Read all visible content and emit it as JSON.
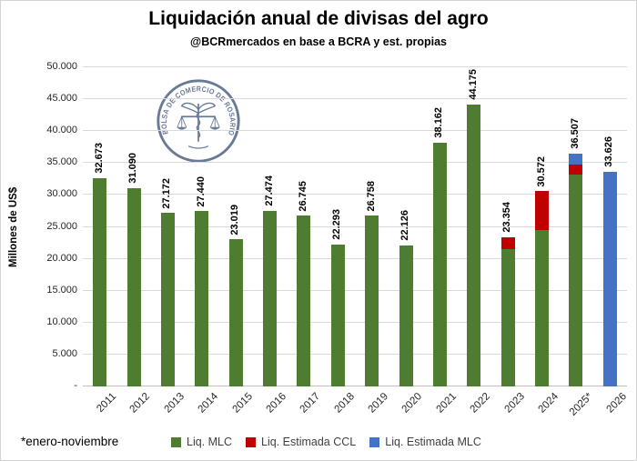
{
  "footnote": "*enero-noviembre",
  "watermark_text": "BOLSA DE COMERCIO DE ROSARIO",
  "colors": {
    "green": "#4e7d31",
    "red": "#c00000",
    "blue": "#4472c4",
    "gridline": "#d9d9d9",
    "axis": "#bfbfbf",
    "tick_text": "#262626",
    "watermark": "#5d6f8e"
  },
  "chart_data": {
    "type": "bar",
    "stacked": true,
    "title": "Liquidación anual de divisas del agro",
    "subtitle": "@BCRmercados en base a BCRA y est. propias",
    "ylabel": "Millones de US$",
    "ylim": [
      0,
      50000
    ],
    "ytick_interval": 5000,
    "grid": true,
    "legend_position": "bottom",
    "yticks": [
      {
        "value": 0,
        "label": "-"
      },
      {
        "value": 5000,
        "label": "5.000"
      },
      {
        "value": 10000,
        "label": "10.000"
      },
      {
        "value": 15000,
        "label": "15.000"
      },
      {
        "value": 20000,
        "label": "20.000"
      },
      {
        "value": 25000,
        "label": "25.000"
      },
      {
        "value": 30000,
        "label": "30.000"
      },
      {
        "value": 35000,
        "label": "35.000"
      },
      {
        "value": 40000,
        "label": "40.000"
      },
      {
        "value": 45000,
        "label": "45.000"
      },
      {
        "value": 50000,
        "label": "50.000"
      }
    ],
    "categories": [
      "2011",
      "2012",
      "2013",
      "2014",
      "2015",
      "2016",
      "2017",
      "2018",
      "2019",
      "2020",
      "2021",
      "2022",
      "2023",
      "2024",
      "2025*",
      "2026"
    ],
    "series": [
      {
        "name": "Liq. MLC",
        "color": "#4e7d31",
        "values": [
          32673,
          31090,
          27172,
          27440,
          23019,
          27474,
          26745,
          22293,
          26758,
          22126,
          38162,
          44175,
          21510,
          24501,
          33234,
          0
        ]
      },
      {
        "name": "Liq. Estimada CCL",
        "color": "#c00000",
        "values": [
          0,
          0,
          0,
          0,
          0,
          0,
          0,
          0,
          0,
          0,
          0,
          0,
          1844,
          6071,
          1566,
          0
        ]
      },
      {
        "name": "Liq. Estimada MLC",
        "color": "#4472c4",
        "values": [
          0,
          0,
          0,
          0,
          0,
          0,
          0,
          0,
          0,
          0,
          0,
          0,
          0,
          0,
          1707,
          33626
        ]
      }
    ],
    "total_labels": [
      "32.673",
      "31.090",
      "27.172",
      "27.440",
      "23.019",
      "27.474",
      "26.745",
      "22.293",
      "26.758",
      "22.126",
      "38.162",
      "44.175",
      "23.354",
      "30.572",
      "36.507",
      "33.626"
    ]
  }
}
